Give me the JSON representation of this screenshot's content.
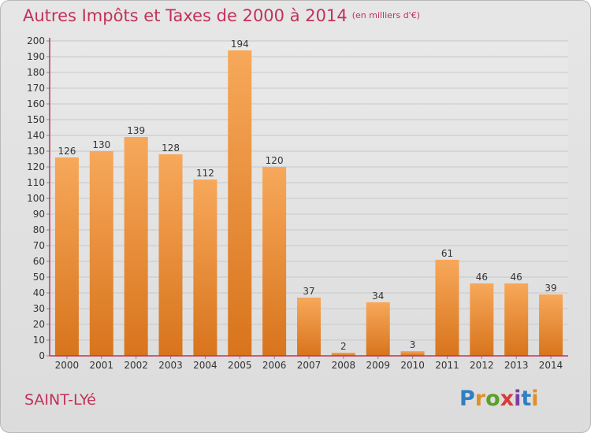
{
  "header": {
    "title": "Autres Impôts et Taxes de 2000 à 2014",
    "unit": "(en milliers d'€)"
  },
  "footer": {
    "town": "SAINT-LYé",
    "logo": [
      "P",
      "r",
      "o",
      "x",
      "i",
      "t",
      "i"
    ],
    "logo_colors": [
      "#2f7fc1",
      "#e0902a",
      "#5aa02c",
      "#d93a3a",
      "#7a3fa0",
      "#2f7fc1",
      "#e0902a"
    ]
  },
  "chart_data": {
    "type": "bar",
    "title": "Autres Impôts et Taxes de 2000 à 2014",
    "subtitle": "(en milliers d'€)",
    "categories": [
      "2000",
      "2001",
      "2002",
      "2003",
      "2004",
      "2005",
      "2006",
      "2007",
      "2008",
      "2009",
      "2010",
      "2011",
      "2012",
      "2013",
      "2014"
    ],
    "values": [
      126,
      130,
      139,
      128,
      112,
      194,
      120,
      37,
      2,
      34,
      3,
      61,
      46,
      46,
      39
    ],
    "ylim": [
      0,
      200
    ],
    "yticks": [
      0,
      10,
      20,
      30,
      40,
      50,
      60,
      70,
      80,
      90,
      100,
      110,
      120,
      130,
      140,
      150,
      160,
      170,
      180,
      190,
      200
    ],
    "grid": true,
    "bar_color_top": "#f7a85a",
    "bar_color_bottom": "#d8741c",
    "axis_color": "#c1325a"
  }
}
